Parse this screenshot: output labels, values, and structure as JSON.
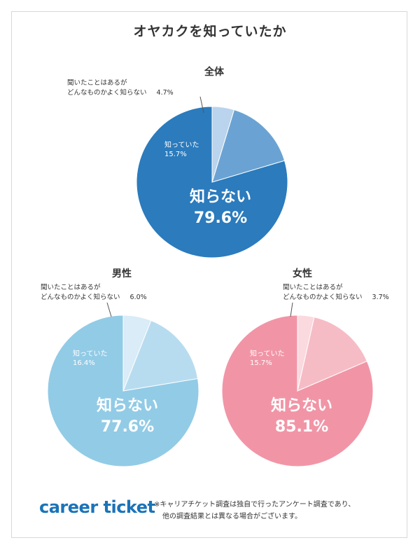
{
  "title": "オヤカクを知っていたか",
  "brand": {
    "logo_text": "career ticket",
    "color": "#1a73b8"
  },
  "footnote": {
    "line1": "※キャリアチケット調査は独自で行ったアンケート調査であり、",
    "line2": "他の調査結果とは異なる場合がございます。"
  },
  "chart_data": [
    {
      "type": "pie",
      "title": "全体",
      "slices": [
        {
          "label": "知らない",
          "value": 79.6,
          "value_text": "79.6%",
          "color": "#2b7bbd"
        },
        {
          "label": "知っていた",
          "value": 15.7,
          "value_text": "15.7%",
          "color": "#6aa3d3"
        },
        {
          "label": "聞いたことはあるがどんなものかよく知らない",
          "value": 4.7,
          "value_text": "4.7%",
          "color": "#b9d4ec",
          "label_lines": [
            "聞いたことはあるが",
            "どんなものかよく知らない"
          ]
        }
      ]
    },
    {
      "type": "pie",
      "title": "男性",
      "slices": [
        {
          "label": "知らない",
          "value": 77.6,
          "value_text": "77.6%",
          "color": "#92cbe6"
        },
        {
          "label": "知っていた",
          "value": 16.4,
          "value_text": "16.4%",
          "color": "#b8dcef"
        },
        {
          "label": "聞いたことはあるがどんなものかよく知らない",
          "value": 6.0,
          "value_text": "6.0%",
          "color": "#d9ecf7",
          "label_lines": [
            "聞いたことはあるが",
            "どんなものかよく知らない"
          ]
        }
      ]
    },
    {
      "type": "pie",
      "title": "女性",
      "slices": [
        {
          "label": "知らない",
          "value": 85.1,
          "value_text": "85.1%",
          "color": "#f195a6"
        },
        {
          "label": "知っていた",
          "value": 15.7,
          "value_text": "15.7%",
          "color": "#f6bcc6"
        },
        {
          "label": "聞いたことはあるがどんなものかよく知らない",
          "value": 3.7,
          "value_text": "3.7%",
          "color": "#fad9df",
          "label_lines": [
            "聞いたことはあるが",
            "どんなものかよく知らない"
          ]
        }
      ]
    }
  ]
}
